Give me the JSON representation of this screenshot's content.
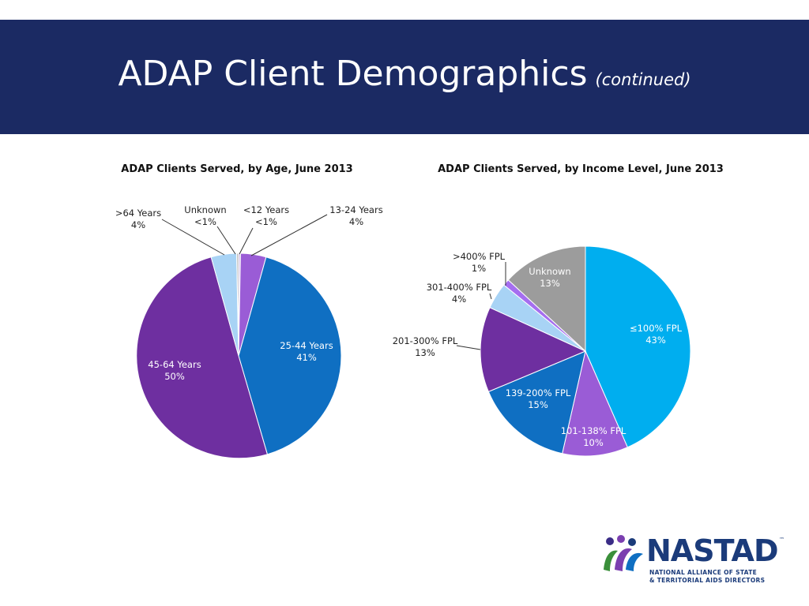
{
  "header": {
    "title": "ADAP Client Demographics",
    "subtitle": "(continued)",
    "background": "#1b2a63"
  },
  "chart_data": [
    {
      "type": "pie",
      "title": "ADAP Clients Served, by Age, June 2013",
      "start_angle_deg": 0,
      "direction": "clockwise",
      "slices": [
        {
          "label": "<12 Years",
          "pct_label": "<1%",
          "value": 0.3,
          "color": "#d3c0e6"
        },
        {
          "label": "13-24 Years",
          "pct_label": "4%",
          "value": 4,
          "color": "#9a5cd6"
        },
        {
          "label": "25-44 Years",
          "pct_label": "41%",
          "value": 41,
          "color": "#0f6fc2"
        },
        {
          "label": "45-64 Years",
          "pct_label": "50%",
          "value": 50,
          "color": "#6e2fa0"
        },
        {
          "label": ">64 Years",
          "pct_label": "4%",
          "value": 4,
          "color": "#a8d3f5"
        },
        {
          "label": "Unknown",
          "pct_label": "<1%",
          "value": 0.3,
          "color": "#bdbdbd"
        }
      ]
    },
    {
      "type": "pie",
      "title": "ADAP Clients Served, by Income Level, June 2013",
      "start_angle_deg": 0,
      "direction": "clockwise",
      "slices": [
        {
          "label": "≤100% FPL",
          "pct_label": "43%",
          "value": 43,
          "color": "#00aeef"
        },
        {
          "label": "101-138% FPL",
          "pct_label": "10%",
          "value": 10,
          "color": "#9a5cd6"
        },
        {
          "label": "139-200% FPL",
          "pct_label": "15%",
          "value": 15,
          "color": "#0f6fc2"
        },
        {
          "label": "201-300% FPL",
          "pct_label": "13%",
          "value": 13,
          "color": "#6e2fa0"
        },
        {
          "label": "301-400% FPL",
          "pct_label": "4%",
          "value": 4,
          "color": "#a8d3f5"
        },
        {
          "label": ">400% FPL",
          "pct_label": "1%",
          "value": 1,
          "color": "#a56ef0"
        },
        {
          "label": "Unknown",
          "pct_label": "13%",
          "value": 13,
          "color": "#9c9c9c"
        }
      ]
    }
  ],
  "logo": {
    "wordmark": "NASTAD",
    "trademark": "™",
    "line1": "NATIONAL ALLIANCE OF STATE",
    "line2": "& TERRITORIAL AIDS DIRECTORS",
    "color": "#1b3b7a"
  }
}
